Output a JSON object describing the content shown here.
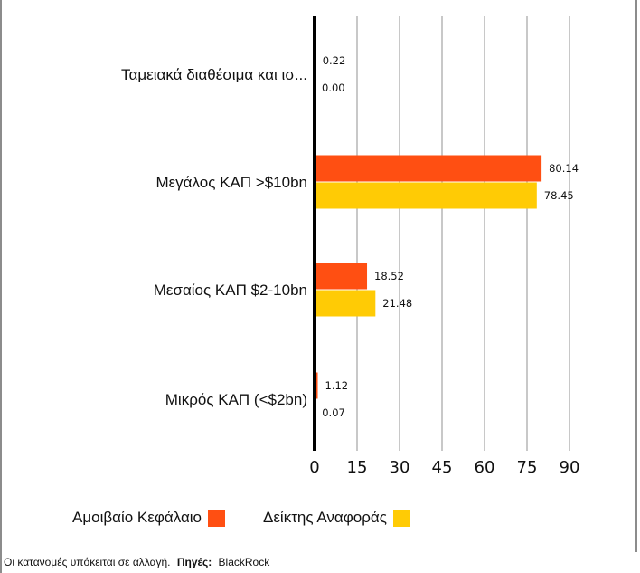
{
  "chart_data": {
    "type": "bar",
    "orientation": "horizontal",
    "categories": [
      "Ταμειακά διαθέσιμα και ισ...",
      "Μεγάλος ΚΑΠ >$10bn",
      "Μεσαίος ΚΑΠ $2-10bn",
      "Μικρός ΚΑΠ (<$2bn)"
    ],
    "series": [
      {
        "name": "Αμοιβαίο Κεφάλαιο",
        "color": "#ff4f12",
        "values": [
          0.22,
          80.14,
          18.52,
          1.12
        ],
        "labels": [
          "0.22",
          "80.14",
          "18.52",
          "1.12"
        ]
      },
      {
        "name": "Δείκτης Αναφοράς",
        "color": "#ffcb05",
        "values": [
          0.0,
          78.45,
          21.48,
          0.07
        ],
        "labels": [
          "0.00",
          "78.45",
          "21.48",
          "0.07"
        ]
      }
    ],
    "xlim": [
      0,
      90
    ],
    "xticks": [
      "0",
      "15",
      "30",
      "45",
      "60",
      "75",
      "90"
    ],
    "grid": true,
    "legend_position": "bottom-left"
  },
  "footer": {
    "note": "Οι κατανομές υπόκειται σε αλλαγή.",
    "source_label": "Πηγές:",
    "source_value": "BlackRock"
  }
}
